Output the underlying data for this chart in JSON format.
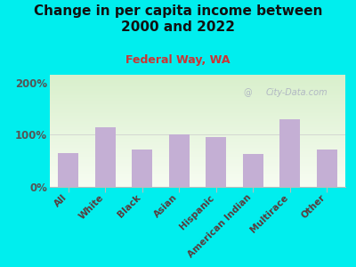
{
  "title": "Change in per capita income between\n2000 and 2022",
  "subtitle": "Federal Way, WA",
  "categories": [
    "All",
    "White",
    "Black",
    "Asian",
    "Hispanic",
    "American Indian",
    "Multirace",
    "Other"
  ],
  "values": [
    65,
    115,
    72,
    100,
    95,
    63,
    130,
    72
  ],
  "bar_color": "#c4afd4",
  "title_fontsize": 11,
  "subtitle_fontsize": 9,
  "subtitle_color": "#cc3333",
  "title_color": "#111111",
  "background_outer": "#00EEEE",
  "ylabel_ticks": [
    "0%",
    "100%",
    "200%"
  ],
  "ytick_values": [
    0,
    100,
    200
  ],
  "ylim": [
    0,
    215
  ],
  "watermark": "City-Data.com",
  "tick_label_color": "#5a3a3a",
  "ytick_label_color": "#555555",
  "axis_label_fontsize": 7.5
}
